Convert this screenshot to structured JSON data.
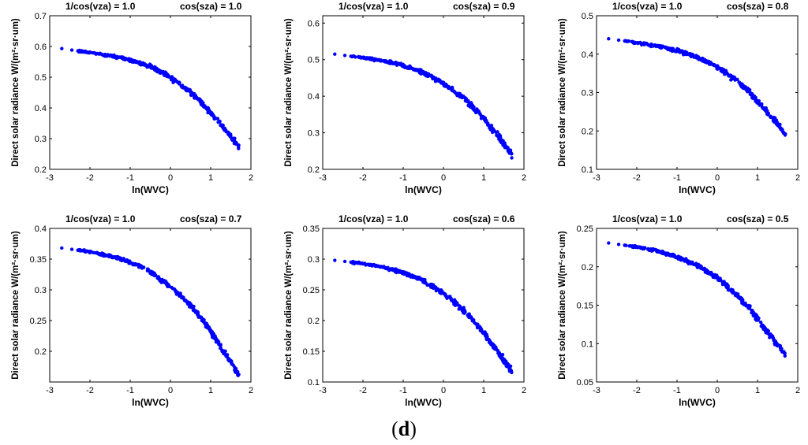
{
  "figure_label": {
    "open": "(",
    "letter": "d",
    "close": ")"
  },
  "chart_data": [
    {
      "type": "scatter",
      "title_left": "1/cos(vza) = 1.0",
      "title_right": "cos(sza) = 1.0",
      "xlabel": "ln(WVC)",
      "ylabel": "Direct solar radiance W/(m²·sr·um)",
      "xlim": [
        -3,
        2
      ],
      "ylim": [
        0.2,
        0.7
      ],
      "xticks": [
        -3,
        -2,
        -1,
        0,
        1,
        2
      ],
      "xtick_labels": [
        "-3",
        "-2",
        "-1",
        "0",
        "1",
        "2"
      ],
      "yticks": [
        0.2,
        0.3,
        0.4,
        0.5,
        0.6,
        0.7
      ],
      "ytick_labels": [
        "0.2",
        "0.3",
        "0.4",
        "0.5",
        "0.6",
        "0.7"
      ],
      "curve": {
        "x": [
          -2.7,
          -2.0,
          -1.5,
          -1.0,
          -0.5,
          0.0,
          0.5,
          0.8,
          1.0,
          1.2,
          1.4,
          1.6,
          1.7
        ],
        "y": [
          0.593,
          0.58,
          0.57,
          0.556,
          0.535,
          0.5,
          0.45,
          0.413,
          0.385,
          0.355,
          0.322,
          0.29,
          0.275
        ]
      },
      "color": "#0000ff"
    },
    {
      "type": "scatter",
      "title_left": "1/cos(vza) = 1.0",
      "title_right": "cos(sza) = 0.9",
      "xlabel": "ln(WVC)",
      "ylabel": "Direct solar radiance W/(m²·sr·um)",
      "xlim": [
        -3,
        2
      ],
      "ylim": [
        0.2,
        0.62
      ],
      "xticks": [
        -3,
        -2,
        -1,
        0,
        1,
        2
      ],
      "xtick_labels": [
        "-3",
        "-2",
        "-1",
        "0",
        "1",
        "2"
      ],
      "yticks": [
        0.2,
        0.3,
        0.4,
        0.5,
        0.6
      ],
      "ytick_labels": [
        "0.2",
        "0.3",
        "0.4",
        "0.5",
        "0.6"
      ],
      "curve": {
        "x": [
          -2.7,
          -2.0,
          -1.5,
          -1.0,
          -0.5,
          0.0,
          0.5,
          0.8,
          1.0,
          1.2,
          1.4,
          1.6,
          1.7
        ],
        "y": [
          0.515,
          0.505,
          0.497,
          0.485,
          0.465,
          0.435,
          0.395,
          0.362,
          0.34,
          0.312,
          0.285,
          0.255,
          0.24
        ]
      },
      "color": "#0000ff"
    },
    {
      "type": "scatter",
      "title_left": "1/cos(vza) = 1.0",
      "title_right": "cos(sza) = 0.8",
      "xlabel": "ln(WVC)",
      "ylabel": "Direct solar radiance W/(m²·sr·um)",
      "xlim": [
        -3,
        2
      ],
      "ylim": [
        0.1,
        0.5
      ],
      "xticks": [
        -3,
        -2,
        -1,
        0,
        1,
        2
      ],
      "xtick_labels": [
        "-3",
        "-2",
        "-1",
        "0",
        "1",
        "2"
      ],
      "yticks": [
        0.1,
        0.2,
        0.3,
        0.4,
        0.5
      ],
      "ytick_labels": [
        "0.1",
        "0.2",
        "0.3",
        "0.4",
        "0.5"
      ],
      "curve": {
        "x": [
          -2.7,
          -2.0,
          -1.5,
          -1.0,
          -0.5,
          0.0,
          0.5,
          0.8,
          1.0,
          1.2,
          1.4,
          1.6,
          1.7
        ],
        "y": [
          0.44,
          0.43,
          0.422,
          0.41,
          0.392,
          0.367,
          0.33,
          0.3,
          0.278,
          0.255,
          0.232,
          0.205,
          0.19
        ]
      },
      "color": "#0000ff"
    },
    {
      "type": "scatter",
      "title_left": "1/cos(vza) = 1.0",
      "title_right": "cos(sza) = 0.7",
      "xlabel": "ln(WVC)",
      "ylabel": "Direct solar radiance W/(m²·sr·um)",
      "xlim": [
        -3,
        2
      ],
      "ylim": [
        0.15,
        0.4
      ],
      "xticks": [
        -3,
        -2,
        -1,
        0,
        1,
        2
      ],
      "xtick_labels": [
        "-3",
        "-2",
        "-1",
        "0",
        "1",
        "2"
      ],
      "yticks": [
        0.2,
        0.25,
        0.3,
        0.35,
        0.4
      ],
      "ytick_labels": [
        "0.2",
        "0.25",
        "0.3",
        "0.35",
        "0.4"
      ],
      "curve": {
        "x": [
          -2.7,
          -2.0,
          -1.5,
          -1.0,
          -0.5,
          0.0,
          0.5,
          0.8,
          1.0,
          1.2,
          1.4,
          1.6,
          1.7
        ],
        "y": [
          0.368,
          0.362,
          0.355,
          0.345,
          0.33,
          0.305,
          0.275,
          0.252,
          0.233,
          0.212,
          0.192,
          0.172,
          0.16
        ]
      },
      "color": "#0000ff"
    },
    {
      "type": "scatter",
      "title_left": "1/cos(vza) = 1.0",
      "title_right": "cos(sza) = 0.6",
      "xlabel": "ln(WVC)",
      "ylabel": "Direct solar radiance W/(m²·sr·um)",
      "xlim": [
        -3,
        2
      ],
      "ylim": [
        0.1,
        0.35
      ],
      "xticks": [
        -3,
        -2,
        -1,
        0,
        1,
        2
      ],
      "xtick_labels": [
        "-3",
        "-2",
        "-1",
        "0",
        "1",
        "2"
      ],
      "yticks": [
        0.1,
        0.15,
        0.2,
        0.25,
        0.3,
        0.35
      ],
      "ytick_labels": [
        "0.1",
        "0.15",
        "0.2",
        "0.25",
        "0.3",
        "0.35"
      ],
      "curve": {
        "x": [
          -2.7,
          -2.0,
          -1.5,
          -1.0,
          -0.5,
          0.0,
          0.5,
          0.8,
          1.0,
          1.2,
          1.4,
          1.6,
          1.7
        ],
        "y": [
          0.298,
          0.293,
          0.287,
          0.278,
          0.265,
          0.245,
          0.217,
          0.196,
          0.18,
          0.162,
          0.145,
          0.127,
          0.117
        ]
      },
      "color": "#0000ff"
    },
    {
      "type": "scatter",
      "title_left": "1/cos(vza) = 1.0",
      "title_right": "cos(sza) = 0.5",
      "xlabel": "ln(WVC)",
      "ylabel": "Direct solar radiance W/(m²·sr·um)",
      "xlim": [
        -3,
        2
      ],
      "ylim": [
        0.05,
        0.25
      ],
      "xticks": [
        -3,
        -2,
        -1,
        0,
        1,
        2
      ],
      "xtick_labels": [
        "-3",
        "-2",
        "-1",
        "0",
        "1",
        "2"
      ],
      "yticks": [
        0.05,
        0.1,
        0.15,
        0.2,
        0.25
      ],
      "ytick_labels": [
        "0.05",
        "0.1",
        "0.15",
        "0.2",
        "0.25"
      ],
      "curve": {
        "x": [
          -2.7,
          -2.0,
          -1.5,
          -1.0,
          -0.5,
          0.0,
          0.5,
          0.8,
          1.0,
          1.2,
          1.4,
          1.6,
          1.7
        ],
        "y": [
          0.231,
          0.226,
          0.221,
          0.213,
          0.202,
          0.186,
          0.162,
          0.146,
          0.132,
          0.118,
          0.105,
          0.092,
          0.085
        ]
      },
      "color": "#0000ff"
    }
  ]
}
